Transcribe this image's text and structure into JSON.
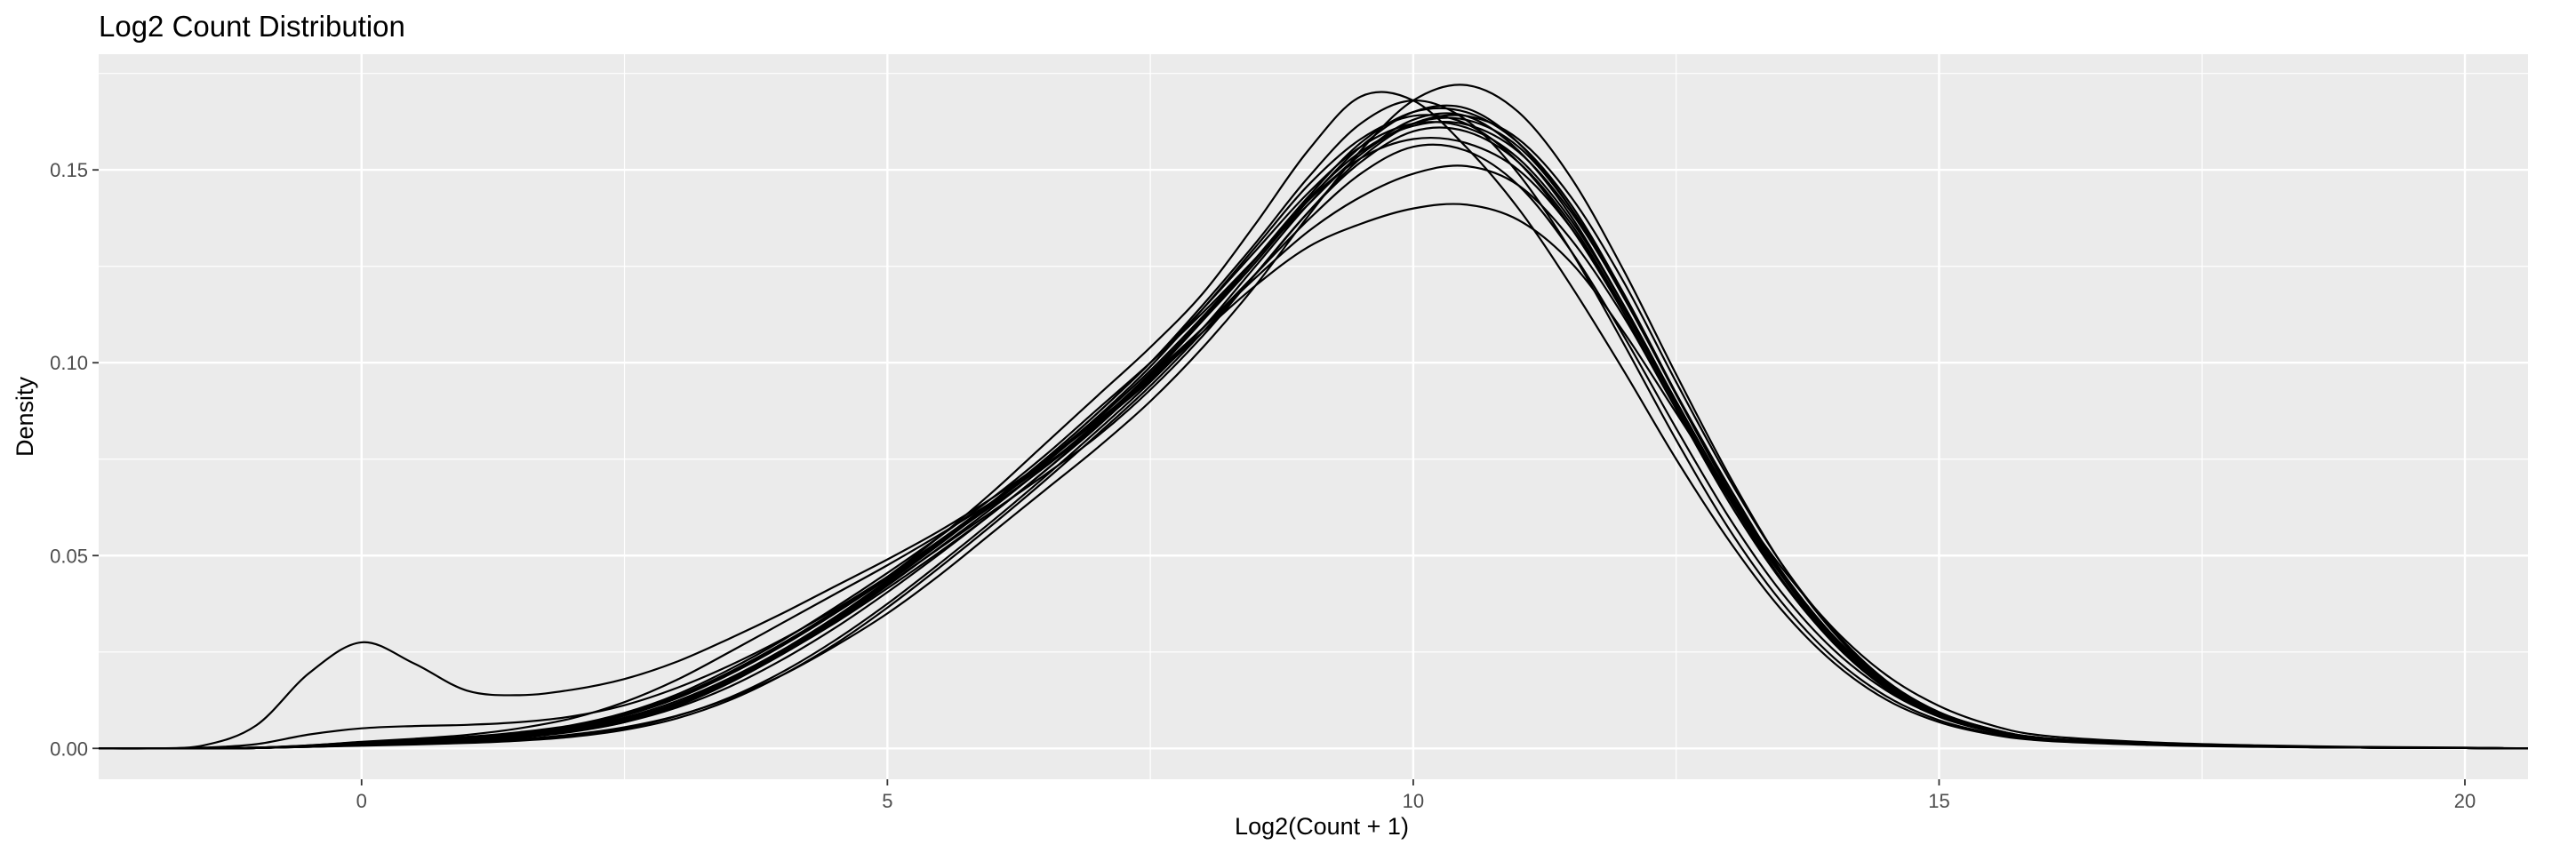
{
  "chart_data": {
    "type": "line",
    "title": "Log2 Count Distribution",
    "xlabel": "Log2(Count + 1)",
    "ylabel": "Density",
    "xlim": [
      -2.5,
      20.6
    ],
    "ylim": [
      -0.008,
      0.18
    ],
    "xticks": [
      0,
      5,
      10,
      15,
      20
    ],
    "yticks": [
      0.0,
      0.05,
      0.1,
      0.15
    ],
    "xtick_labels": [
      "0",
      "5",
      "10",
      "15",
      "20"
    ],
    "ytick_labels": [
      "0.00",
      "0.05",
      "0.10",
      "0.15"
    ],
    "grid": true,
    "legend": "none",
    "colors": {
      "panel": "#ebebeb",
      "grid": "#ffffff",
      "line": "#000000",
      "tick_text": "#4d4d4d"
    },
    "x": [
      -2.5,
      -2,
      -1.5,
      -1,
      -0.5,
      0,
      0.5,
      1,
      1.5,
      2,
      2.5,
      3,
      3.5,
      4,
      4.5,
      5,
      5.5,
      6,
      6.5,
      7,
      7.5,
      8,
      8.5,
      9,
      9.5,
      10,
      10.5,
      11,
      11.5,
      12,
      12.5,
      13,
      13.5,
      14,
      14.5,
      15,
      15.5,
      16,
      17,
      18,
      19,
      20,
      20.6
    ],
    "series": [
      {
        "values": [
          0,
          0,
          0,
          0.0002,
          0.0008,
          0.0016,
          0.0022,
          0.003,
          0.0042,
          0.006,
          0.0092,
          0.014,
          0.0205,
          0.028,
          0.0365,
          0.0455,
          0.055,
          0.065,
          0.076,
          0.088,
          0.1,
          0.113,
          0.127,
          0.141,
          0.154,
          0.163,
          0.164,
          0.155,
          0.138,
          0.115,
          0.09,
          0.066,
          0.045,
          0.028,
          0.016,
          0.0085,
          0.0045,
          0.0025,
          0.0012,
          0.0006,
          0.0003,
          0.0001,
          0
        ]
      },
      {
        "values": [
          0,
          0,
          0,
          0.0001,
          0.0005,
          0.001,
          0.0015,
          0.002,
          0.003,
          0.0045,
          0.007,
          0.0115,
          0.0175,
          0.0245,
          0.0325,
          0.0415,
          0.051,
          0.061,
          0.072,
          0.084,
          0.097,
          0.111,
          0.126,
          0.142,
          0.156,
          0.165,
          0.166,
          0.157,
          0.14,
          0.117,
          0.092,
          0.068,
          0.046,
          0.029,
          0.0165,
          0.0088,
          0.0046,
          0.0026,
          0.0012,
          0.0006,
          0.0003,
          0.0001,
          0
        ]
      },
      {
        "values": [
          0,
          0,
          0,
          0.0001,
          0.0004,
          0.0008,
          0.0012,
          0.0016,
          0.0024,
          0.0036,
          0.0055,
          0.0085,
          0.013,
          0.019,
          0.0265,
          0.035,
          0.045,
          0.056,
          0.067,
          0.078,
          0.09,
          0.104,
          0.12,
          0.138,
          0.155,
          0.168,
          0.172,
          0.165,
          0.148,
          0.124,
          0.097,
          0.071,
          0.048,
          0.03,
          0.017,
          0.009,
          0.0048,
          0.0026,
          0.0013,
          0.0006,
          0.0003,
          0.0001,
          0
        ]
      },
      {
        "values": [
          0,
          0,
          0,
          0.0002,
          0.0007,
          0.0013,
          0.0019,
          0.0027,
          0.0039,
          0.0057,
          0.0088,
          0.0135,
          0.0198,
          0.0272,
          0.0355,
          0.0445,
          0.054,
          0.064,
          0.075,
          0.087,
          0.1,
          0.115,
          0.131,
          0.148,
          0.162,
          0.168,
          0.163,
          0.149,
          0.129,
          0.105,
          0.08,
          0.057,
          0.038,
          0.0235,
          0.0135,
          0.0073,
          0.0039,
          0.0021,
          0.001,
          0.0005,
          0.0002,
          0.0001,
          0
        ]
      },
      {
        "values": [
          0,
          0,
          0.0002,
          0.0011,
          0.0036,
          0.0052,
          0.0058,
          0.0061,
          0.0068,
          0.0083,
          0.0112,
          0.0157,
          0.0215,
          0.0283,
          0.036,
          0.0445,
          0.0535,
          0.063,
          0.073,
          0.084,
          0.096,
          0.109,
          0.123,
          0.137,
          0.149,
          0.156,
          0.155,
          0.146,
          0.129,
          0.107,
          0.083,
          0.06,
          0.0405,
          0.0255,
          0.015,
          0.0082,
          0.0044,
          0.0024,
          0.0011,
          0.0005,
          0.0002,
          0.0001,
          0
        ]
      },
      {
        "values": [
          0,
          0,
          0.0008,
          0.006,
          0.0195,
          0.0275,
          0.022,
          0.015,
          0.0138,
          0.0152,
          0.018,
          0.0225,
          0.0285,
          0.035,
          0.042,
          0.049,
          0.0565,
          0.065,
          0.0745,
          0.085,
          0.0965,
          0.109,
          0.122,
          0.134,
          0.143,
          0.149,
          0.151,
          0.146,
          0.132,
          0.112,
          0.088,
          0.065,
          0.045,
          0.029,
          0.017,
          0.0094,
          0.005,
          0.0027,
          0.0013,
          0.0006,
          0.0003,
          0.0001,
          0
        ]
      },
      {
        "values": [
          0,
          0,
          0,
          0.0001,
          0.0005,
          0.0009,
          0.0013,
          0.0018,
          0.0028,
          0.0043,
          0.0068,
          0.011,
          0.017,
          0.0245,
          0.033,
          0.0425,
          0.052,
          0.0615,
          0.071,
          0.081,
          0.093,
          0.107,
          0.123,
          0.139,
          0.152,
          0.16,
          0.16,
          0.152,
          0.136,
          0.114,
          0.089,
          0.065,
          0.044,
          0.0275,
          0.0157,
          0.0084,
          0.0044,
          0.0024,
          0.0011,
          0.0005,
          0.0002,
          0.0001,
          0
        ]
      },
      {
        "values": [
          0,
          0,
          0,
          0.0001,
          0.0004,
          0.0007,
          0.001,
          0.0014,
          0.002,
          0.003,
          0.0048,
          0.0078,
          0.0125,
          0.019,
          0.027,
          0.0365,
          0.047,
          0.058,
          0.0695,
          0.0815,
          0.094,
          0.108,
          0.123,
          0.139,
          0.153,
          0.162,
          0.164,
          0.158,
          0.143,
          0.121,
          0.095,
          0.07,
          0.048,
          0.0305,
          0.0175,
          0.0094,
          0.005,
          0.0027,
          0.0013,
          0.0006,
          0.0003,
          0.0001,
          0
        ]
      },
      {
        "values": [
          0,
          0,
          0,
          0.0002,
          0.0008,
          0.0017,
          0.0025,
          0.0035,
          0.0052,
          0.0078,
          0.012,
          0.0178,
          0.025,
          0.0325,
          0.04,
          0.0475,
          0.0555,
          0.064,
          0.0735,
          0.084,
          0.0955,
          0.108,
          0.12,
          0.13,
          0.136,
          0.14,
          0.141,
          0.137,
          0.126,
          0.108,
          0.087,
          0.066,
          0.047,
          0.031,
          0.019,
          0.011,
          0.006,
          0.0033,
          0.0016,
          0.0008,
          0.0004,
          0.0002,
          0
        ]
      },
      {
        "values": [
          0,
          0,
          0,
          0.0001,
          0.0006,
          0.0012,
          0.0018,
          0.0025,
          0.0037,
          0.0055,
          0.0085,
          0.013,
          0.0192,
          0.0266,
          0.035,
          0.0445,
          0.055,
          0.0665,
          0.079,
          0.0915,
          0.104,
          0.118,
          0.136,
          0.155,
          0.169,
          0.168,
          0.156,
          0.14,
          0.12,
          0.098,
          0.075,
          0.054,
          0.036,
          0.0222,
          0.0126,
          0.0068,
          0.0036,
          0.002,
          0.0009,
          0.0004,
          0.0002,
          0.0001,
          0
        ]
      },
      {
        "values": [
          0,
          0,
          0,
          0.0001,
          0.0005,
          0.0011,
          0.0016,
          0.0022,
          0.0033,
          0.0049,
          0.0076,
          0.0118,
          0.0178,
          0.025,
          0.0335,
          0.043,
          0.053,
          0.0635,
          0.0745,
          0.086,
          0.099,
          0.114,
          0.13,
          0.146,
          0.158,
          0.164,
          0.162,
          0.152,
          0.135,
          0.113,
          0.088,
          0.064,
          0.0435,
          0.0272,
          0.0155,
          0.0083,
          0.0044,
          0.0024,
          0.0011,
          0.0005,
          0.0002,
          0.0001,
          0
        ]
      },
      {
        "values": [
          0,
          0,
          0,
          0.0002,
          0.0007,
          0.0014,
          0.002,
          0.0028,
          0.004,
          0.0058,
          0.0088,
          0.0133,
          0.0195,
          0.0268,
          0.035,
          0.044,
          0.0535,
          0.0635,
          0.074,
          0.0855,
          0.098,
          0.112,
          0.127,
          0.142,
          0.153,
          0.158,
          0.157,
          0.15,
          0.135,
          0.114,
          0.09,
          0.066,
          0.045,
          0.0283,
          0.0163,
          0.0088,
          0.0047,
          0.0026,
          0.0012,
          0.0006,
          0.0003,
          0.0001,
          0
        ]
      },
      {
        "values": [
          0,
          0,
          0,
          0.0001,
          0.0004,
          0.0008,
          0.0011,
          0.0015,
          0.0022,
          0.0033,
          0.0052,
          0.0084,
          0.0132,
          0.0198,
          0.028,
          0.0375,
          0.048,
          0.059,
          0.0705,
          0.0825,
          0.095,
          0.109,
          0.125,
          0.141,
          0.154,
          0.162,
          0.163,
          0.156,
          0.14,
          0.118,
          0.092,
          0.067,
          0.046,
          0.029,
          0.0166,
          0.0089,
          0.0047,
          0.0026,
          0.0012,
          0.0006,
          0.0003,
          0.0001,
          0
        ]
      },
      {
        "values": [
          0,
          0,
          0,
          0.0002,
          0.0006,
          0.0012,
          0.0017,
          0.0024,
          0.0035,
          0.0052,
          0.008,
          0.0123,
          0.0182,
          0.0255,
          0.034,
          0.0435,
          0.0535,
          0.064,
          0.075,
          0.087,
          0.1,
          0.114,
          0.129,
          0.144,
          0.156,
          0.162,
          0.161,
          0.153,
          0.137,
          0.115,
          0.09,
          0.066,
          0.045,
          0.028,
          0.016,
          0.0086,
          0.0045,
          0.0025,
          0.0012,
          0.0005,
          0.0002,
          0.0001,
          0
        ]
      },
      {
        "values": [
          0,
          0,
          0,
          0.0001,
          0.0005,
          0.001,
          0.0014,
          0.002,
          0.0029,
          0.0044,
          0.0068,
          0.0106,
          0.016,
          0.023,
          0.0312,
          0.0405,
          0.0505,
          0.061,
          0.072,
          0.0835,
          0.0965,
          0.111,
          0.127,
          0.143,
          0.157,
          0.165,
          0.165,
          0.157,
          0.141,
          0.118,
          0.092,
          0.067,
          0.045,
          0.028,
          0.016,
          0.0086,
          0.0045,
          0.0025,
          0.0012,
          0.0005,
          0.0002,
          0.0001,
          0
        ]
      },
      {
        "values": [
          0,
          0,
          0,
          0.0001,
          0.0005,
          0.001,
          0.0015,
          0.0021,
          0.0031,
          0.0047,
          0.0074,
          0.0115,
          0.0172,
          0.0244,
          0.0328,
          0.0422,
          0.0522,
          0.0624,
          0.0732,
          0.0846,
          0.0973,
          0.1114,
          0.1268,
          0.1424,
          0.1547,
          0.1614,
          0.1618,
          0.1547,
          0.1391,
          0.1172,
          0.0917,
          0.0669,
          0.0452,
          0.0283,
          0.0163,
          0.0088,
          0.0046,
          0.0025,
          0.0012,
          0.0006,
          0.0003,
          0.0001,
          0
        ]
      }
    ]
  }
}
